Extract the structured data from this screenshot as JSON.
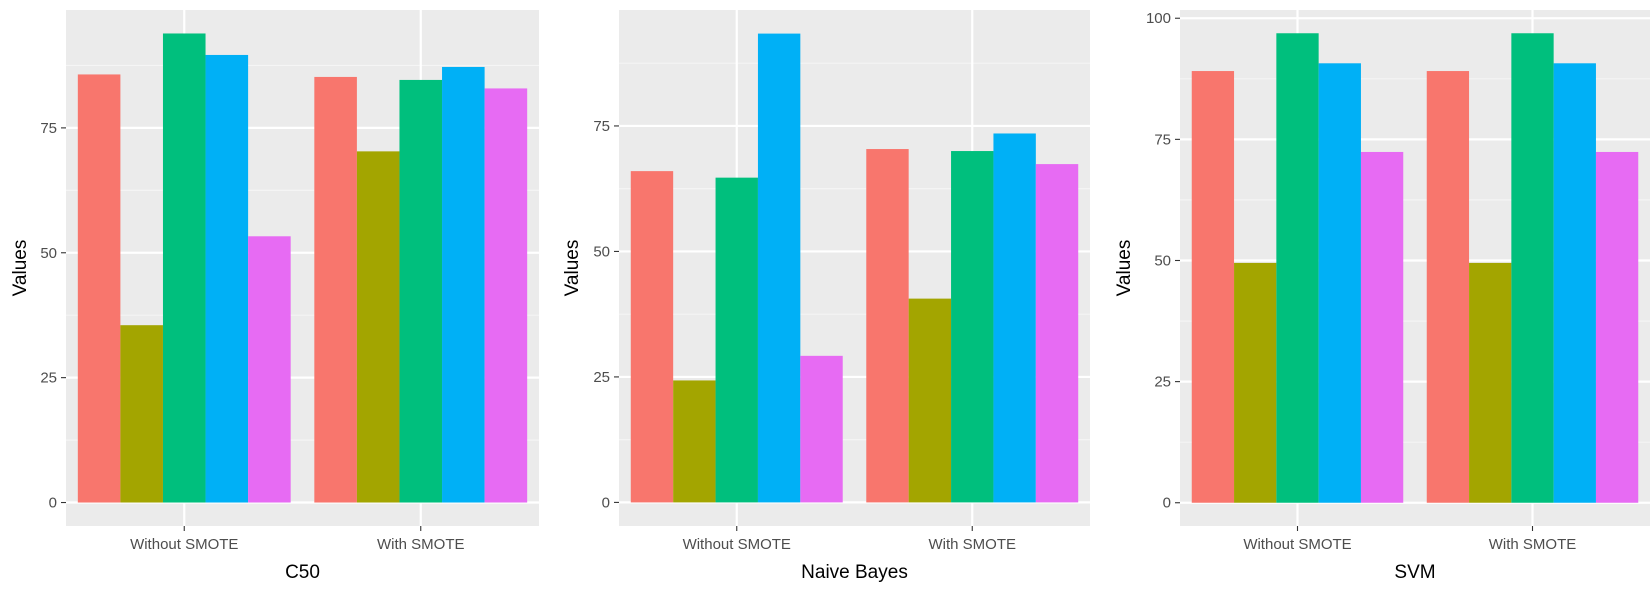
{
  "colors": {
    "panel_background": "#EBEBEB",
    "grid_major": "#FFFFFF",
    "grid_minor": "#F5F5F5",
    "series": [
      "#F8766D",
      "#A3A500",
      "#00BF7D",
      "#00B0F6",
      "#E76BF3"
    ]
  },
  "chart_data": [
    {
      "type": "bar",
      "categories": [
        "Without SMOTE",
        "With SMOTE"
      ],
      "series": [
        {
          "values": [
            85.7,
            85.2
          ]
        },
        {
          "values": [
            35.5,
            70.3
          ]
        },
        {
          "values": [
            93.9,
            84.6
          ]
        },
        {
          "values": [
            89.6,
            87.2
          ]
        },
        {
          "values": [
            53.3,
            82.9
          ]
        }
      ],
      "title": "",
      "xlabel": "C50",
      "ylabel": "Values",
      "ylim": [
        -4.7,
        98.6
      ],
      "yticks": [
        0,
        25,
        50,
        75
      ],
      "grid": true,
      "legend": "none"
    },
    {
      "type": "bar",
      "categories": [
        "Without SMOTE",
        "With SMOTE"
      ],
      "series": [
        {
          "values": [
            66.0,
            70.4
          ]
        },
        {
          "values": [
            24.3,
            40.6
          ]
        },
        {
          "values": [
            64.7,
            70.0
          ]
        },
        {
          "values": [
            93.4,
            73.5
          ]
        },
        {
          "values": [
            29.2,
            67.4
          ]
        }
      ],
      "title": "",
      "xlabel": "Naive Bayes",
      "ylabel": "Values",
      "ylim": [
        -4.7,
        98.1
      ],
      "yticks": [
        0,
        25,
        50,
        75
      ],
      "grid": true,
      "legend": "none"
    },
    {
      "type": "bar",
      "categories": [
        "Without SMOTE",
        "With SMOTE"
      ],
      "series": [
        {
          "values": [
            89.1,
            89.1
          ]
        },
        {
          "values": [
            49.5,
            49.5
          ]
        },
        {
          "values": [
            96.9,
            96.9
          ]
        },
        {
          "values": [
            90.7,
            90.7
          ]
        },
        {
          "values": [
            72.4,
            72.4
          ]
        }
      ],
      "title": "",
      "xlabel": "SVM",
      "ylabel": "Values",
      "ylim": [
        -4.8,
        101.7
      ],
      "yticks": [
        0,
        25,
        50,
        75,
        100
      ],
      "grid": true,
      "legend": "none"
    }
  ]
}
